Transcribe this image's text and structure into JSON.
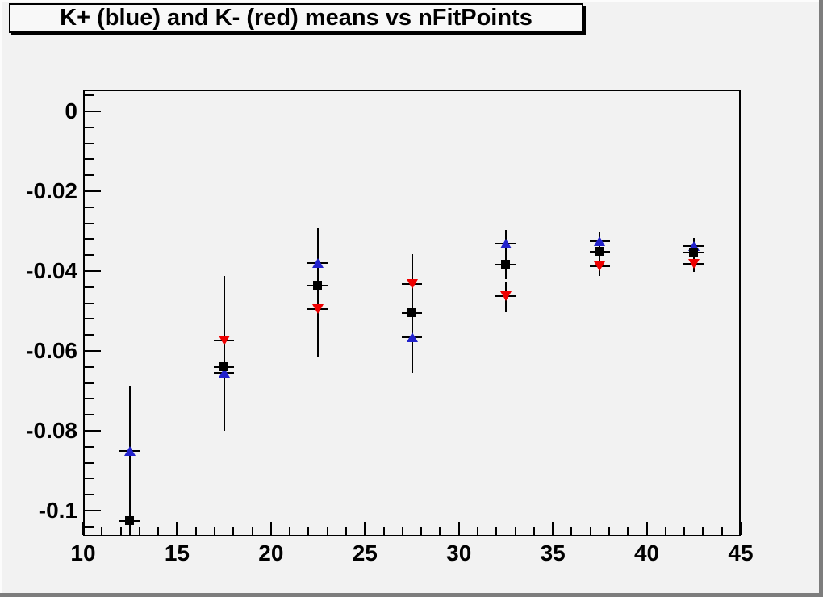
{
  "colors": {
    "canvas_bg": "#f2f2f2",
    "bevel_light": "#fcfcfc",
    "bevel_dark": "#7d7d7d",
    "title_box_bg": "#f8f8f8",
    "frame_line": "#000000",
    "kplus_blue": "#2222cc",
    "kminus_red": "#ee0000",
    "square_black": "#000000"
  },
  "chart_data": {
    "type": "scatter",
    "title": "K+ (blue) and K- (red) means vs nFitPoints",
    "xlabel": "",
    "ylabel": "",
    "grid": false,
    "legend_position": "none",
    "xlim": [
      10,
      45
    ],
    "ylim": [
      -0.10646,
      0.00545
    ],
    "x_major_ticks": [
      10,
      15,
      20,
      25,
      30,
      35,
      40,
      45
    ],
    "x_tick_labels": [
      "10",
      "15",
      "20",
      "25",
      "30",
      "35",
      "40",
      "45"
    ],
    "x_minor_step": 1,
    "y_major_ticks": [
      0,
      -0.02,
      -0.04,
      -0.06,
      -0.08,
      -0.1
    ],
    "y_tick_labels": [
      "0",
      "-0.02",
      "-0.04",
      "-0.06",
      "-0.08",
      "-0.1"
    ],
    "y_minor_step": 0.004,
    "x_error_halfwidth": 0.55,
    "series": [
      {
        "name": "K+ (blue)",
        "marker": "triangle-up",
        "color": "#2222cc",
        "points": [
          {
            "x": 12.5,
            "y": -0.0851,
            "bar_top": -0.0687,
            "bar_bottom": -0.101
          },
          {
            "x": 17.5,
            "y": -0.0655,
            "bar_top": -0.054,
            "bar_bottom": -0.078
          },
          {
            "x": 22.5,
            "y": -0.038,
            "bar_top": -0.0293,
            "bar_bottom": -0.0467
          },
          {
            "x": 27.5,
            "y": -0.0566,
            "bar_top": -0.0478,
            "bar_bottom": -0.0655
          },
          {
            "x": 32.5,
            "y": -0.0331,
            "bar_top": -0.0297,
            "bar_bottom": -0.0368
          },
          {
            "x": 37.5,
            "y": -0.0325,
            "bar_top": -0.0303,
            "bar_bottom": -0.0349
          },
          {
            "x": 42.5,
            "y": -0.0337,
            "bar_top": -0.0318,
            "bar_bottom": -0.0356
          }
        ]
      },
      {
        "name": "K- (red)",
        "marker": "triangle-down",
        "color": "#ee0000",
        "points": [
          {
            "x": 17.5,
            "y": -0.0574,
            "bar_top": -0.0412,
            "bar_bottom": -0.0736
          },
          {
            "x": 22.5,
            "y": -0.0495,
            "bar_top": -0.038,
            "bar_bottom": -0.0616
          },
          {
            "x": 27.5,
            "y": -0.0432,
            "bar_top": -0.0358,
            "bar_bottom": -0.0508
          },
          {
            "x": 32.5,
            "y": -0.0463,
            "bar_top": -0.0426,
            "bar_bottom": -0.0503
          },
          {
            "x": 37.5,
            "y": -0.0388,
            "bar_top": -0.036,
            "bar_bottom": -0.0413
          },
          {
            "x": 42.5,
            "y": -0.0382,
            "bar_top": -0.0362,
            "bar_bottom": -0.0403
          }
        ]
      },
      {
        "name": "black-squares",
        "marker": "square",
        "color": "#000000",
        "points": [
          {
            "x": 12.5,
            "y": -0.1026,
            "bar_top": -0.086,
            "bar_bottom": -0.119
          },
          {
            "x": 17.5,
            "y": -0.064,
            "bar_top": -0.048,
            "bar_bottom": -0.08
          },
          {
            "x": 22.5,
            "y": -0.0436,
            "bar_top": -0.035,
            "bar_bottom": -0.052
          },
          {
            "x": 27.5,
            "y": -0.0505,
            "bar_top": -0.042,
            "bar_bottom": -0.059
          },
          {
            "x": 32.5,
            "y": -0.0384,
            "bar_top": -0.0348,
            "bar_bottom": -0.042
          },
          {
            "x": 37.5,
            "y": -0.0352,
            "bar_top": -0.033,
            "bar_bottom": -0.0375
          },
          {
            "x": 42.5,
            "y": -0.0354,
            "bar_top": -0.0336,
            "bar_bottom": -0.0373
          }
        ]
      }
    ]
  }
}
